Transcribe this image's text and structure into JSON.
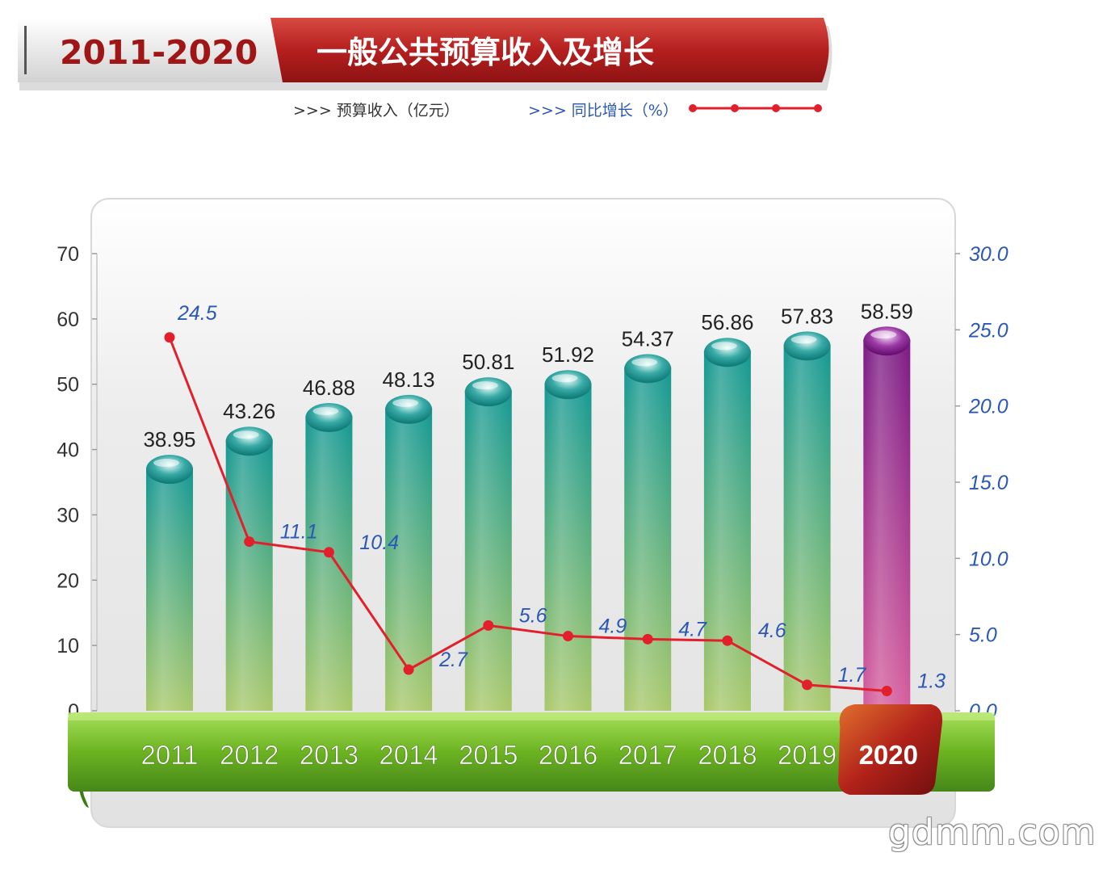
{
  "banner": {
    "period": "2011-2020",
    "title": "一般公共预算收入及增长"
  },
  "legend": {
    "revenue": ">>> 预算收入（亿元）",
    "growth": ">>> 同比增长（%）"
  },
  "colors": {
    "bar_top": "#139893",
    "bar_bottom": "#a9c86a",
    "highlight_top": "#7b1a85",
    "highlight_bottom": "#d65e9d",
    "line": "#e2202b",
    "growth_label": "#2b58b4",
    "ribbon": "#6cb321",
    "banner_red": "#b8201f"
  },
  "chart_data": {
    "type": "bar",
    "title": "一般公共预算收入及增长",
    "categories": [
      "2011",
      "2012",
      "2013",
      "2014",
      "2015",
      "2016",
      "2017",
      "2018",
      "2019",
      "2020"
    ],
    "highlight": "2020",
    "series": [
      {
        "name": "预算收入（亿元）",
        "type": "bar",
        "axis": "left",
        "values": [
          38.95,
          43.26,
          46.88,
          48.13,
          50.81,
          51.92,
          54.37,
          56.86,
          57.83,
          58.59
        ],
        "labels": [
          "38.95",
          "43.26",
          "46.88",
          "48.13",
          "50.81",
          "51.92",
          "54.37",
          "56.86",
          "57.83",
          "58.59"
        ]
      },
      {
        "name": "同比增长（%）",
        "type": "line",
        "axis": "right",
        "values": [
          24.5,
          11.1,
          10.4,
          2.7,
          5.6,
          4.9,
          4.7,
          4.6,
          1.7,
          1.3
        ],
        "labels": [
          "24.5",
          "11.1",
          "10.4",
          "2.7",
          "5.6",
          "4.9",
          "4.7",
          "4.6",
          "1.7",
          "1.3"
        ]
      }
    ],
    "y_left": {
      "ylim": [
        0,
        70
      ],
      "ticks": [
        "0",
        "10",
        "20",
        "30",
        "40",
        "50",
        "60",
        "70"
      ]
    },
    "y_right": {
      "ylim": [
        0,
        30
      ],
      "ticks": [
        "0.0",
        "5.0",
        "10.0",
        "15.0",
        "20.0",
        "25.0",
        "30.0"
      ]
    },
    "legend_position": "top",
    "grid": false
  },
  "watermark": "gdmm.com"
}
